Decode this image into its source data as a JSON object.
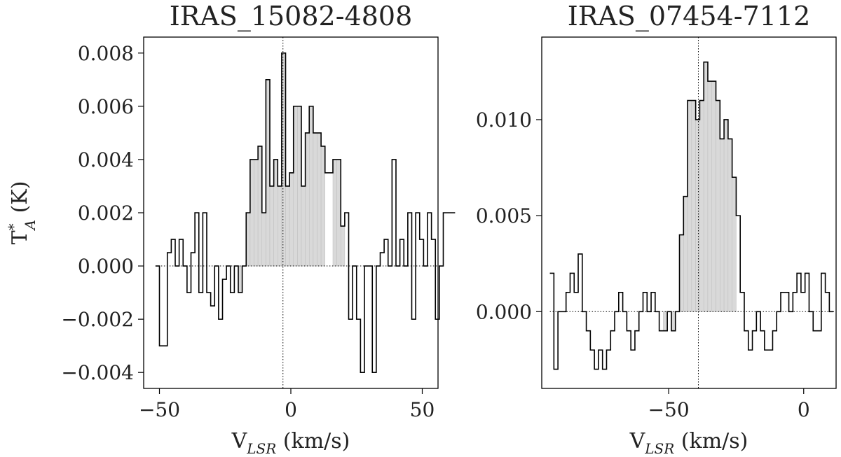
{
  "y_axis_label": "T",
  "y_axis_label_sup": "*",
  "y_axis_label_sub": "A",
  "y_axis_label_unit": " (K)",
  "x_axis_label_main": "V",
  "x_axis_label_sub": "LSR",
  "x_axis_label_unit": " (km/s)",
  "chart_data": [
    {
      "type": "line",
      "title": "IRAS_15082-4808",
      "xlim": [
        -56,
        56
      ],
      "ylim": [
        -0.0046,
        0.0086
      ],
      "xticks": [
        -50,
        0,
        50
      ],
      "xtick_labels": [
        "−50",
        "0",
        "50"
      ],
      "yticks": [
        -0.004,
        -0.002,
        0.0,
        0.002,
        0.004,
        0.006,
        0.008
      ],
      "ytick_labels": [
        "−0.004",
        "−0.002",
        "0.000",
        "0.002",
        "0.004",
        "0.006",
        "0.008"
      ],
      "x_start": -51.5,
      "step": 1.5,
      "values": [
        0,
        -0.003,
        -0.003,
        0.0005,
        0.001,
        0.0,
        0.001,
        0.0,
        -0.001,
        0.0005,
        0.002,
        -0.001,
        0.002,
        -0.001,
        -0.0015,
        0.0,
        -0.002,
        -0.0005,
        0.0,
        -0.001,
        0.0,
        -0.001,
        0.0,
        0.002,
        0.004,
        0.004,
        0.0045,
        0.002,
        0.007,
        0.003,
        0.004,
        0.003,
        0.008,
        0.003,
        0.0035,
        0.006,
        0.006,
        0.003,
        0.005,
        0.006,
        0.005,
        0.005,
        0.0045,
        0.0035,
        0.0035,
        0.004,
        0.004,
        0.0015,
        0.002,
        -0.002,
        0.0,
        -0.002,
        -0.004,
        0.0,
        0.0,
        -0.004,
        0.0,
        0.0005,
        0.001,
        0.0,
        0.004,
        0.0,
        0.001,
        0.0,
        0.002,
        -0.002,
        0.002,
        0.001,
        0.0,
        0.002,
        0.001,
        -0.002,
        0.0,
        0.002,
        0.002,
        0.002
      ],
      "fill_range": [
        -22,
        13.5
      ],
      "fill_range_2": [
        15.5,
        20.5
      ],
      "velocity_marker": -3
    },
    {
      "type": "line",
      "title": "IRAS_07454-7112",
      "xlim": [
        -97,
        12
      ],
      "ylim": [
        -0.004,
        0.0143
      ],
      "xticks": [
        -50,
        0
      ],
      "xtick_labels": [
        "−50",
        "0"
      ],
      "yticks": [
        0.0,
        0.005,
        0.01
      ],
      "ytick_labels": [
        "0.000",
        "0.005",
        "0.010"
      ],
      "x_start": -94,
      "step": 1.5,
      "values": [
        0.002,
        -0.003,
        0.0,
        0.0,
        0.001,
        0.002,
        0.001,
        0.003,
        0.0,
        -0.001,
        -0.002,
        -0.003,
        -0.002,
        -0.003,
        -0.002,
        -0.001,
        0.0,
        0.001,
        0.0,
        -0.001,
        -0.002,
        -0.001,
        0.0,
        0.001,
        0.0,
        0.001,
        0.0,
        -0.001,
        -0.001,
        0.0,
        -0.001,
        0.0,
        0.004,
        0.006,
        0.011,
        0.011,
        0.01,
        0.011,
        0.013,
        0.012,
        0.012,
        0.011,
        0.009,
        0.01,
        0.009,
        0.007,
        0.005,
        0.001,
        -0.001,
        -0.002,
        -0.001,
        0.0,
        -0.001,
        -0.002,
        -0.002,
        -0.001,
        0.0,
        0.001,
        0.001,
        0.0,
        0.001,
        0.002,
        0.001,
        0.002,
        0.0,
        -0.001,
        -0.001,
        0.002,
        0.001,
        0.0
      ],
      "fill_range": [
        -52,
        -25.5
      ],
      "velocity_marker": -39
    }
  ]
}
